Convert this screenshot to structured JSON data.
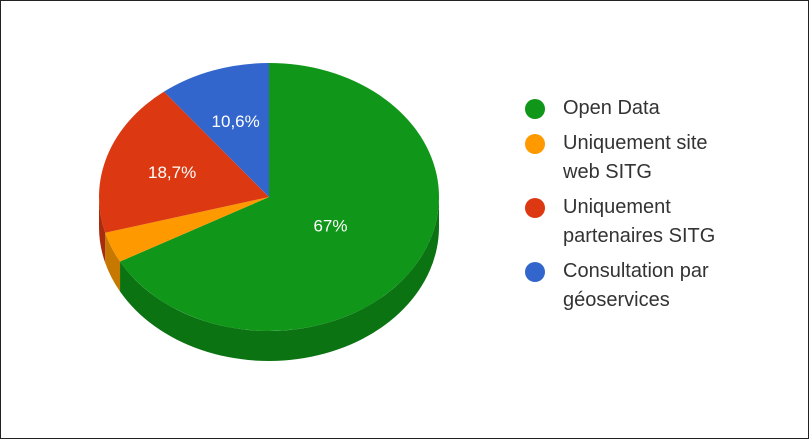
{
  "chart_data": {
    "type": "pie",
    "style": "3d",
    "start_angle_deg": 0,
    "direction": "clockwise",
    "slices": [
      {
        "name": "Open Data",
        "value": 67,
        "label": "67%",
        "color": "#109618",
        "side_color": "#0c7312"
      },
      {
        "name": "Uniquement site web SITG",
        "value": 3.7,
        "label": "",
        "color": "#ff9900",
        "side_color": "#c77800"
      },
      {
        "name": "Uniquement partenaires SITG",
        "value": 18.7,
        "label": "18,7%",
        "color": "#dc3912",
        "side_color": "#a82b0e"
      },
      {
        "name": "Consultation par géoservices",
        "value": 10.6,
        "label": "10,6%",
        "color": "#3366cc",
        "side_color": "#264f9e"
      }
    ],
    "legend": {
      "position": "right",
      "items": [
        {
          "label": "Open Data",
          "color": "#109618"
        },
        {
          "label": "Uniquement site\nweb SITG",
          "color": "#ff9900"
        },
        {
          "label": "Uniquement\npartenaires SITG",
          "color": "#dc3912"
        },
        {
          "label": "Consultation par\ngéoservices",
          "color": "#3366cc"
        }
      ]
    }
  }
}
